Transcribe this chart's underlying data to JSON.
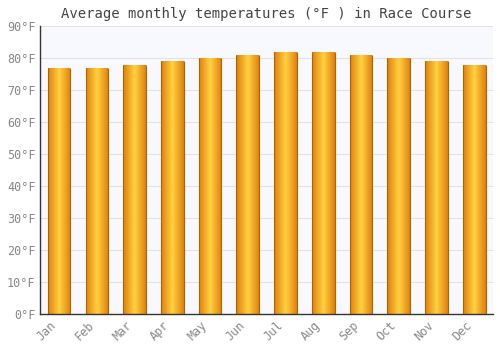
{
  "title": "Average monthly temperatures (°F ) in Race Course",
  "months": [
    "Jan",
    "Feb",
    "Mar",
    "Apr",
    "May",
    "Jun",
    "Jul",
    "Aug",
    "Sep",
    "Oct",
    "Nov",
    "Dec"
  ],
  "values": [
    77,
    77,
    78,
    79,
    80,
    81,
    82,
    82,
    81,
    80,
    79,
    78
  ],
  "bar_color_center": "#FFB800",
  "bar_color_edge": "#E08000",
  "bar_outline_color": "#B06000",
  "background_color": "#FFFFFF",
  "plot_bg_color": "#F8F8FF",
  "grid_color": "#DDDDDD",
  "text_color": "#888888",
  "title_color": "#444444",
  "axis_color": "#333333",
  "ylim": [
    0,
    90
  ],
  "ytick_step": 10,
  "title_fontsize": 10,
  "tick_fontsize": 8.5,
  "bar_width": 0.6
}
